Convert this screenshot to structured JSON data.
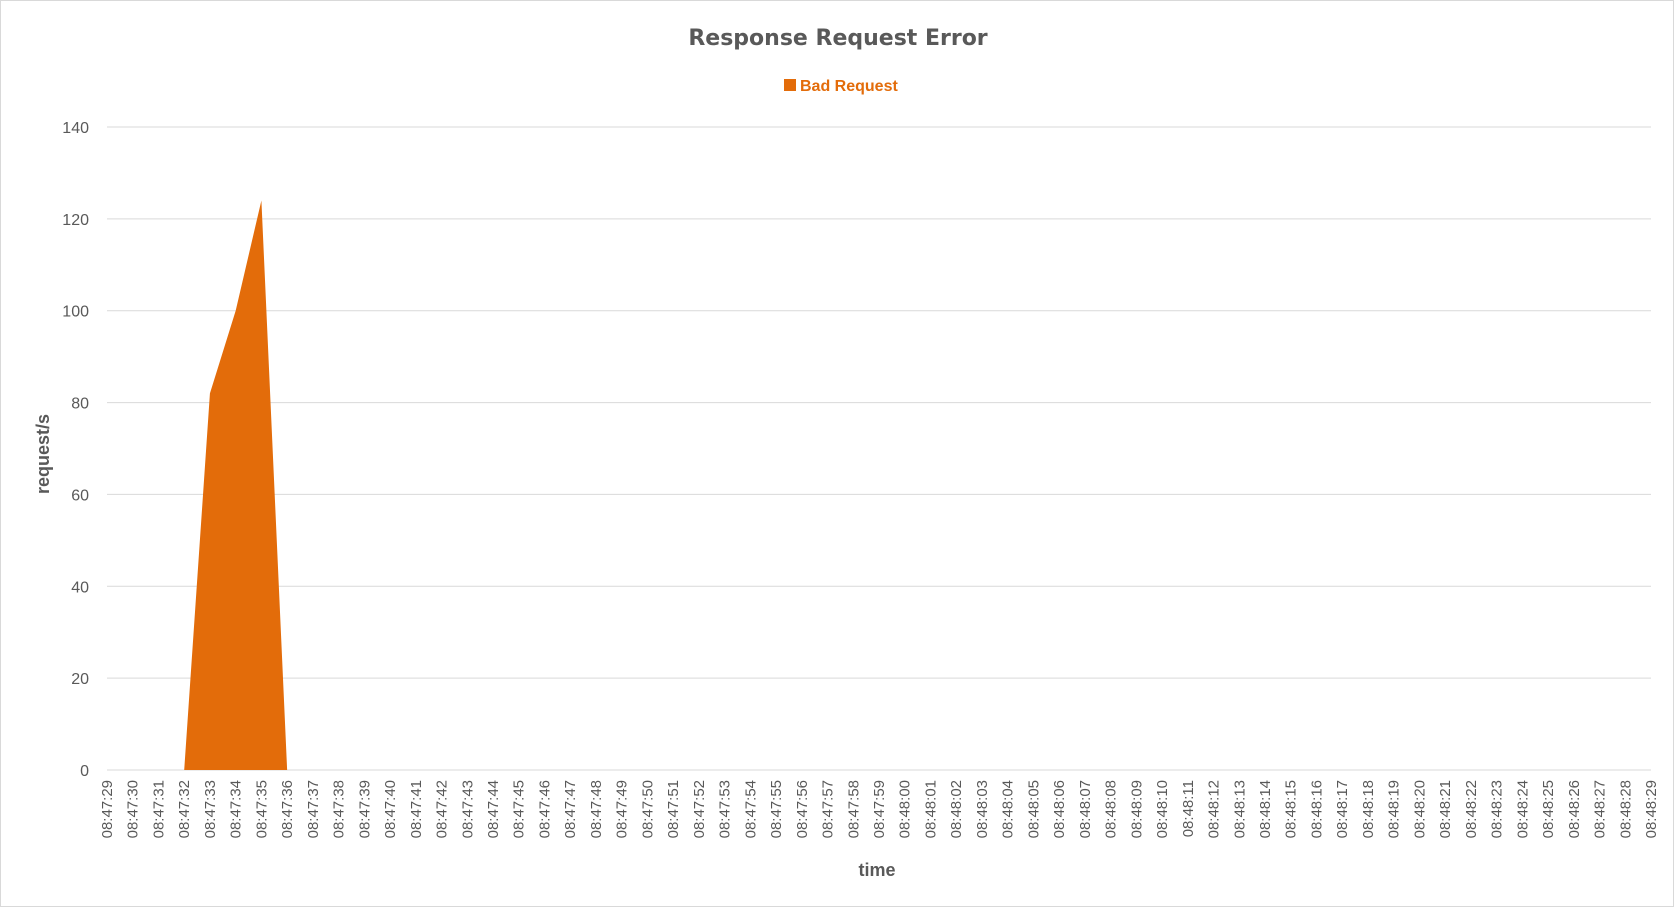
{
  "chart_data": {
    "type": "area",
    "title": "Response Request Error",
    "xlabel": "time",
    "ylabel": "request/s",
    "ylim": [
      0,
      140
    ],
    "yticks": [
      0,
      20,
      40,
      60,
      80,
      100,
      120,
      140
    ],
    "grid": true,
    "legend_position": "top",
    "categories": [
      "08:47:29",
      "08:47:30",
      "08:47:31",
      "08:47:32",
      "08:47:33",
      "08:47:34",
      "08:47:35",
      "08:47:36",
      "08:47:37",
      "08:47:38",
      "08:47:39",
      "08:47:40",
      "08:47:41",
      "08:47:42",
      "08:47:43",
      "08:47:44",
      "08:47:45",
      "08:47:46",
      "08:47:47",
      "08:47:48",
      "08:47:49",
      "08:47:50",
      "08:47:51",
      "08:47:52",
      "08:47:53",
      "08:47:54",
      "08:47:55",
      "08:47:56",
      "08:47:57",
      "08:47:58",
      "08:47:59",
      "08:48:00",
      "08:48:01",
      "08:48:02",
      "08:48:03",
      "08:48:04",
      "08:48:05",
      "08:48:06",
      "08:48:07",
      "08:48:08",
      "08:48:09",
      "08:48:10",
      "08:48:11",
      "08:48:12",
      "08:48:13",
      "08:48:14",
      "08:48:15",
      "08:48:16",
      "08:48:17",
      "08:48:18",
      "08:48:19",
      "08:48:20",
      "08:48:21",
      "08:48:22",
      "08:48:23",
      "08:48:24",
      "08:48:25",
      "08:48:26",
      "08:48:27",
      "08:48:28",
      "08:48:29"
    ],
    "series": [
      {
        "name": "Bad Request",
        "color": "#e36c0a",
        "values": [
          0,
          0,
          0,
          0,
          82,
          100,
          124,
          0,
          0,
          0,
          0,
          0,
          0,
          0,
          0,
          0,
          0,
          0,
          0,
          0,
          0,
          0,
          0,
          0,
          0,
          0,
          0,
          0,
          0,
          0,
          0,
          0,
          0,
          0,
          0,
          0,
          0,
          0,
          0,
          0,
          0,
          0,
          0,
          0,
          0,
          0,
          0,
          0,
          0,
          0,
          0,
          0,
          0,
          0,
          0,
          0,
          0,
          0,
          0,
          0,
          0
        ]
      }
    ]
  }
}
